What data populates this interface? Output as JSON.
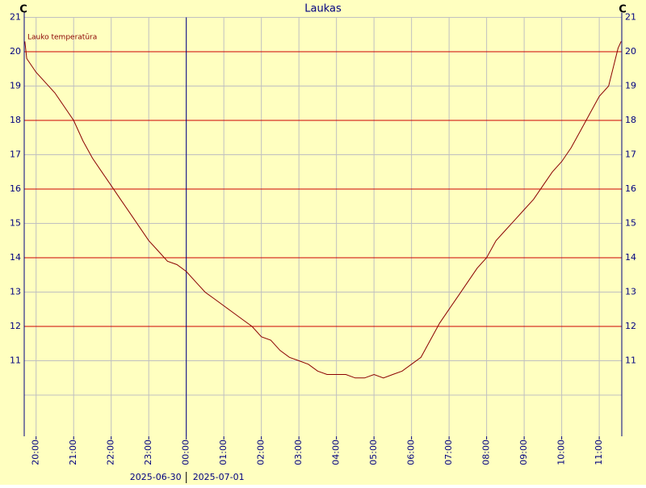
{
  "chart_data": {
    "type": "line",
    "title": "Laukas",
    "y_unit": "C",
    "legend": "Lauko temperatūra",
    "background": "#ffffc0",
    "line_color": "#8b0000",
    "grid_color": "#c0c0c0",
    "major_grid_color": "#cc0000",
    "axis_color": "#000080",
    "dates": [
      "2025-06-30",
      "2025-07-01"
    ],
    "date_boundary": "2025-07-01T00:00",
    "xlim": [
      "2025-06-30T19:41",
      "2025-07-01T11:36"
    ],
    "xticks": [
      {
        "value": "2025-06-30T20:00",
        "label": "20:00"
      },
      {
        "value": "2025-06-30T21:00",
        "label": "21:00"
      },
      {
        "value": "2025-06-30T22:00",
        "label": "22:00"
      },
      {
        "value": "2025-06-30T23:00",
        "label": "23:00"
      },
      {
        "value": "2025-07-01T00:00",
        "label": "00:00"
      },
      {
        "value": "2025-07-01T01:00",
        "label": "01:00"
      },
      {
        "value": "2025-07-01T02:00",
        "label": "02:00"
      },
      {
        "value": "2025-07-01T03:00",
        "label": "03:00"
      },
      {
        "value": "2025-07-01T04:00",
        "label": "04:00"
      },
      {
        "value": "2025-07-01T05:00",
        "label": "05:00"
      },
      {
        "value": "2025-07-01T06:00",
        "label": "06:00"
      },
      {
        "value": "2025-07-01T07:00",
        "label": "07:00"
      },
      {
        "value": "2025-07-01T08:00",
        "label": "08:00"
      },
      {
        "value": "2025-07-01T09:00",
        "label": "09:00"
      },
      {
        "value": "2025-07-01T10:00",
        "label": "10:00"
      },
      {
        "value": "2025-07-01T11:00",
        "label": "11:00"
      }
    ],
    "ylim": [
      8.8,
      21
    ],
    "yticks": [
      11,
      12,
      13,
      14,
      15,
      16,
      17,
      18,
      19,
      20,
      21
    ],
    "yminor": [
      10
    ],
    "x": [
      "2025-06-30T19:42",
      "2025-06-30T19:45",
      "2025-06-30T20:00",
      "2025-06-30T20:15",
      "2025-06-30T20:30",
      "2025-06-30T20:45",
      "2025-06-30T21:00",
      "2025-06-30T21:15",
      "2025-06-30T21:30",
      "2025-06-30T21:45",
      "2025-06-30T22:00",
      "2025-06-30T22:15",
      "2025-06-30T22:30",
      "2025-06-30T22:45",
      "2025-06-30T23:00",
      "2025-06-30T23:15",
      "2025-06-30T23:30",
      "2025-06-30T23:45",
      "2025-07-01T00:00",
      "2025-07-01T00:15",
      "2025-07-01T00:30",
      "2025-07-01T00:45",
      "2025-07-01T01:00",
      "2025-07-01T01:15",
      "2025-07-01T01:30",
      "2025-07-01T01:45",
      "2025-07-01T02:00",
      "2025-07-01T02:15",
      "2025-07-01T02:30",
      "2025-07-01T02:45",
      "2025-07-01T03:00",
      "2025-07-01T03:15",
      "2025-07-01T03:30",
      "2025-07-01T03:45",
      "2025-07-01T04:00",
      "2025-07-01T04:15",
      "2025-07-01T04:30",
      "2025-07-01T04:45",
      "2025-07-01T05:00",
      "2025-07-01T05:15",
      "2025-07-01T05:30",
      "2025-07-01T05:45",
      "2025-07-01T06:00",
      "2025-07-01T06:15",
      "2025-07-01T06:30",
      "2025-07-01T06:45",
      "2025-07-01T07:00",
      "2025-07-01T07:15",
      "2025-07-01T07:30",
      "2025-07-01T07:45",
      "2025-07-01T08:00",
      "2025-07-01T08:15",
      "2025-07-01T08:30",
      "2025-07-01T08:45",
      "2025-07-01T09:00",
      "2025-07-01T09:15",
      "2025-07-01T09:30",
      "2025-07-01T09:45",
      "2025-07-01T10:00",
      "2025-07-01T10:15",
      "2025-07-01T10:30",
      "2025-07-01T10:45",
      "2025-07-01T11:00",
      "2025-07-01T11:15",
      "2025-07-01T11:30",
      "2025-07-01T11:35"
    ],
    "values": [
      20.3,
      19.8,
      19.4,
      19.1,
      18.8,
      18.4,
      18.0,
      17.4,
      16.9,
      16.5,
      16.1,
      15.7,
      15.3,
      14.9,
      14.5,
      14.2,
      13.9,
      13.8,
      13.6,
      13.3,
      13.0,
      12.8,
      12.6,
      12.4,
      12.2,
      12.0,
      11.7,
      11.6,
      11.3,
      11.1,
      11.0,
      10.9,
      10.7,
      10.6,
      10.6,
      10.6,
      10.5,
      10.5,
      10.6,
      10.5,
      10.6,
      10.7,
      10.9,
      11.1,
      11.6,
      12.1,
      12.5,
      12.9,
      13.3,
      13.7,
      14.0,
      14.5,
      14.8,
      15.1,
      15.4,
      15.7,
      16.1,
      16.5,
      16.8,
      17.2,
      17.7,
      18.2,
      18.7,
      19.0,
      20.1,
      20.3
    ]
  }
}
